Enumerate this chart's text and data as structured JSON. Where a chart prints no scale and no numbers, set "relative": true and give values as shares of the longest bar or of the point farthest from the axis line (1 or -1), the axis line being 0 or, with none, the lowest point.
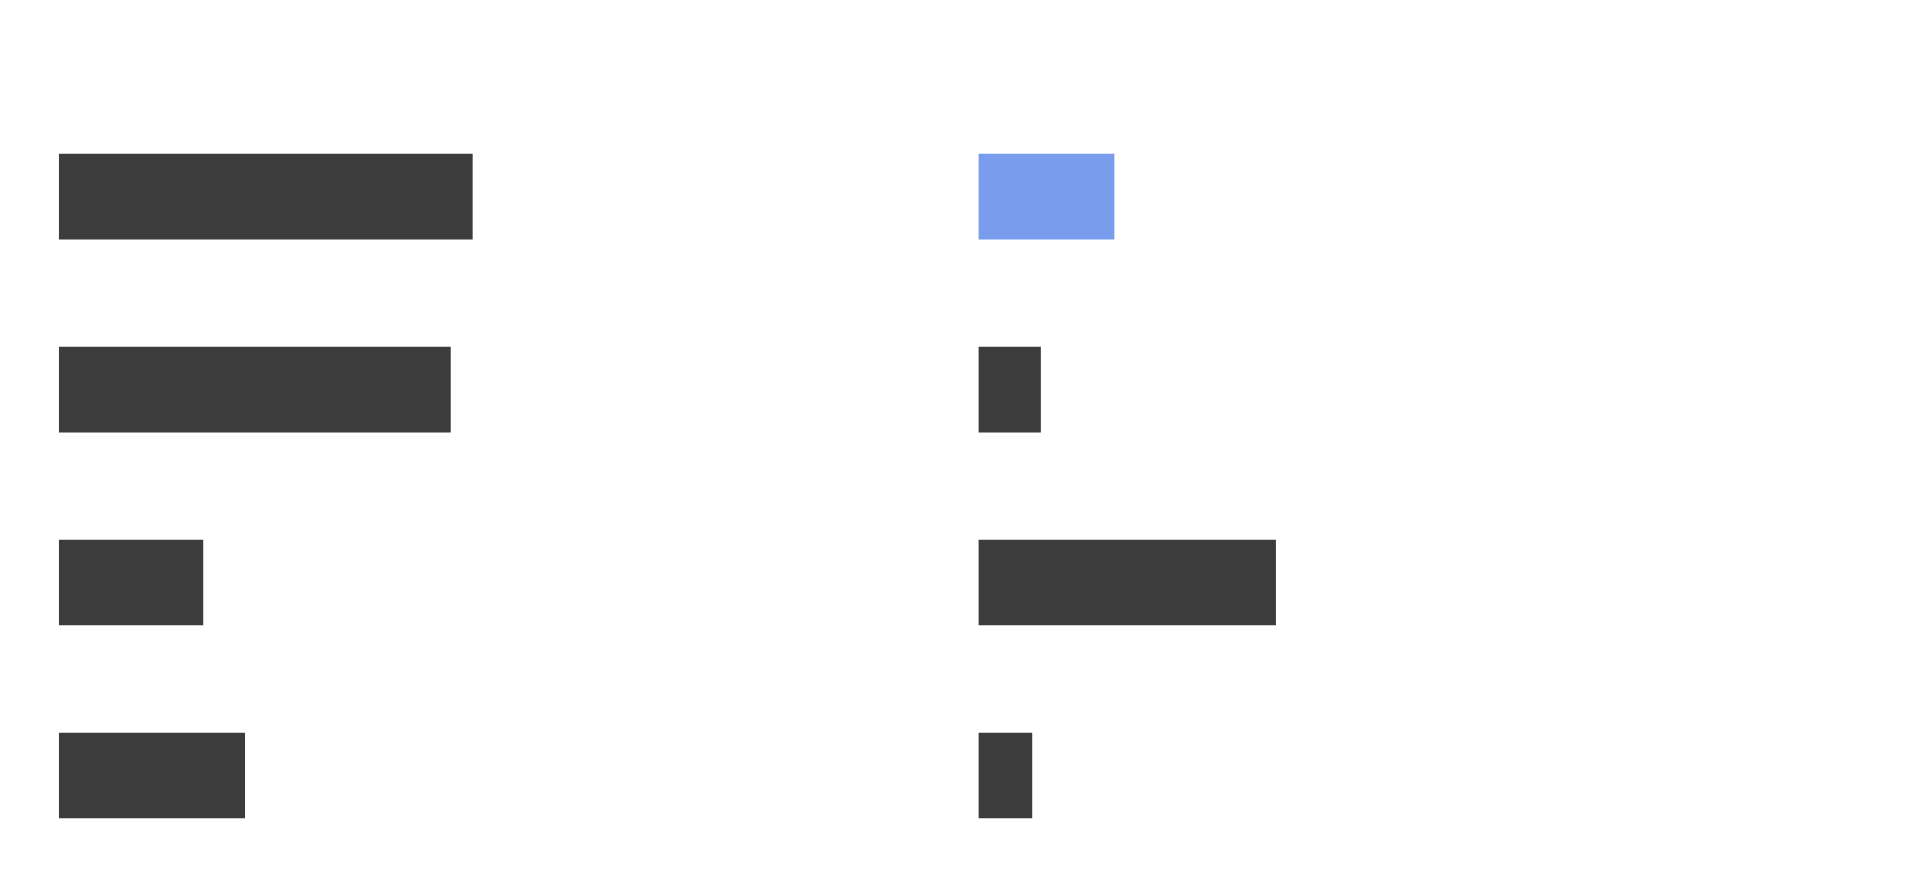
{
  "chart_data": [
    {
      "type": "bar",
      "orientation": "horizontal",
      "relative": true,
      "categories": [
        null,
        null,
        null,
        null
      ],
      "colors": [
        "#3c3c3c",
        "#3c3c3c",
        "#3c3c3c",
        "#3c3c3c"
      ],
      "values": [
        1,
        0.947,
        0.349,
        0.45
      ]
    },
    {
      "type": "bar",
      "orientation": "horizontal",
      "relative": true,
      "categories": [
        null,
        null,
        null,
        null
      ],
      "colors": [
        "#7a9cec",
        "#3c3c3c",
        "#3c3c3c",
        "#3c3c3c"
      ],
      "values": [
        0.457,
        0.21,
        1,
        0.181
      ]
    }
  ]
}
